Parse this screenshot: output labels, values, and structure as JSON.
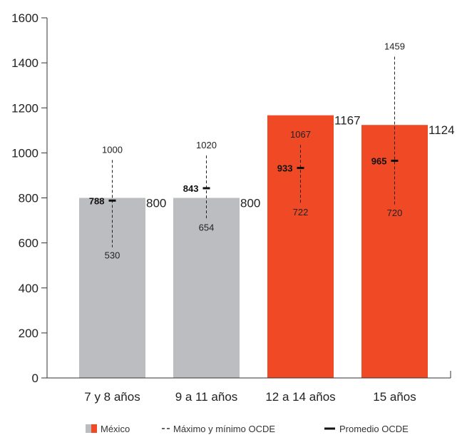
{
  "chart_data": {
    "type": "bar",
    "categories": [
      "7 y 8 años",
      "9 a 11 años",
      "12 a 14 años",
      "15 años"
    ],
    "series": [
      {
        "name": "México",
        "values": [
          800,
          800,
          1167,
          1124
        ]
      },
      {
        "name": "Promedio OCDE",
        "values": [
          788,
          843,
          933,
          965
        ]
      },
      {
        "name": "Máximo OCDE",
        "values": [
          1000,
          1020,
          1067,
          1459
        ]
      },
      {
        "name": "Mínimo OCDE",
        "values": [
          530,
          654,
          722,
          720
        ]
      }
    ],
    "bar_colors": [
      "#bcbdc0",
      "#bcbdc0",
      "#ef4a25",
      "#ef4a25"
    ],
    "mexico_gray": "#bcbdc0",
    "mexico_red": "#ef4a25",
    "yticks": [
      0,
      200,
      400,
      600,
      800,
      1000,
      1200,
      1400,
      1600
    ],
    "ylim": [
      0,
      1600
    ],
    "title": "",
    "xlabel": "",
    "ylabel": "",
    "grid": false,
    "legend_position": "bottom",
    "legend": {
      "mexico": "México",
      "range": "Máximo y mínimo OCDE",
      "average": "Promedio OCDE"
    }
  }
}
